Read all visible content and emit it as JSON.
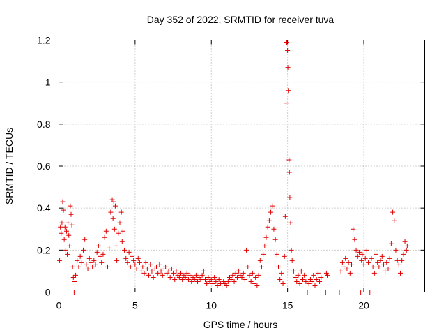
{
  "chart_data": {
    "type": "scatter",
    "title": "Day 352 of 2022, SRMTID for receiver tuva",
    "xlabel": "GPS time / hours",
    "ylabel": "SRMTID / TECUs",
    "xlim": [
      0,
      24
    ],
    "ylim": [
      0,
      1.2
    ],
    "xticks": [
      0,
      5,
      10,
      15,
      20
    ],
    "xtick_labels": [
      "0",
      "5",
      "10",
      "15",
      "20"
    ],
    "yticks": [
      0,
      0.2,
      0.4,
      0.6,
      0.8,
      1.0,
      1.2
    ],
    "ytick_labels": [
      "0",
      "0.2",
      "0.4",
      "0.6",
      "0.8",
      "1",
      "1.2"
    ],
    "grid": true,
    "marker": "+",
    "color": "#e00000",
    "series": [
      {
        "name": "SRMTID",
        "points": [
          [
            0.05,
            0.15
          ],
          [
            0.1,
            0.31
          ],
          [
            0.15,
            0.28
          ],
          [
            0.2,
            0.33
          ],
          [
            0.25,
            0.43
          ],
          [
            0.3,
            0.39
          ],
          [
            0.35,
            0.25
          ],
          [
            0.4,
            0.31
          ],
          [
            0.45,
            0.2
          ],
          [
            0.5,
            0.29
          ],
          [
            0.55,
            0.18
          ],
          [
            0.6,
            0.33
          ],
          [
            0.65,
            0.27
          ],
          [
            0.7,
            0.22
          ],
          [
            0.75,
            0.41
          ],
          [
            0.8,
            0.37
          ],
          [
            0.85,
            0.32
          ],
          [
            0.9,
            0.12
          ],
          [
            0.95,
            0.07
          ],
          [
            1.0,
            0.0
          ],
          [
            1.05,
            0.05
          ],
          [
            1.1,
            0.08
          ],
          [
            1.2,
            0.15
          ],
          [
            1.3,
            0.12
          ],
          [
            1.4,
            0.17
          ],
          [
            1.5,
            0.14
          ],
          [
            1.6,
            0.2
          ],
          [
            1.7,
            0.25
          ],
          [
            1.8,
            0.13
          ],
          [
            1.9,
            0.11
          ],
          [
            2.0,
            0.16
          ],
          [
            2.1,
            0.14
          ],
          [
            2.2,
            0.12
          ],
          [
            2.3,
            0.15
          ],
          [
            2.4,
            0.13
          ],
          [
            2.5,
            0.19
          ],
          [
            2.6,
            0.22
          ],
          [
            2.7,
            0.17
          ],
          [
            2.8,
            0.14
          ],
          [
            2.9,
            0.18
          ],
          [
            3.0,
            0.26
          ],
          [
            3.1,
            0.29
          ],
          [
            3.2,
            0.12
          ],
          [
            3.3,
            0.21
          ],
          [
            3.4,
            0.38
          ],
          [
            3.5,
            0.44
          ],
          [
            3.55,
            0.35
          ],
          [
            3.6,
            0.43
          ],
          [
            3.65,
            0.3
          ],
          [
            3.7,
            0.41
          ],
          [
            3.75,
            0.22
          ],
          [
            3.8,
            0.15
          ],
          [
            3.9,
            0.28
          ],
          [
            4.0,
            0.33
          ],
          [
            4.1,
            0.38
          ],
          [
            4.15,
            0.24
          ],
          [
            4.2,
            0.29
          ],
          [
            4.3,
            0.2
          ],
          [
            4.4,
            0.16
          ],
          [
            4.5,
            0.14
          ],
          [
            4.6,
            0.19
          ],
          [
            4.7,
            0.12
          ],
          [
            4.8,
            0.17
          ],
          [
            4.9,
            0.15
          ],
          [
            5.0,
            0.13
          ],
          [
            5.1,
            0.11
          ],
          [
            5.2,
            0.16
          ],
          [
            5.3,
            0.14
          ],
          [
            5.4,
            0.1
          ],
          [
            5.5,
            0.12
          ],
          [
            5.6,
            0.09
          ],
          [
            5.7,
            0.14
          ],
          [
            5.8,
            0.11
          ],
          [
            5.9,
            0.08
          ],
          [
            6.0,
            0.13
          ],
          [
            6.1,
            0.1
          ],
          [
            6.2,
            0.07
          ],
          [
            6.3,
            0.11
          ],
          [
            6.4,
            0.12
          ],
          [
            6.5,
            0.09
          ],
          [
            6.6,
            0.13
          ],
          [
            6.7,
            0.1
          ],
          [
            6.8,
            0.08
          ],
          [
            6.9,
            0.11
          ],
          [
            7.0,
            0.12
          ],
          [
            7.1,
            0.09
          ],
          [
            7.2,
            0.1
          ],
          [
            7.3,
            0.07
          ],
          [
            7.4,
            0.11
          ],
          [
            7.5,
            0.09
          ],
          [
            7.6,
            0.06
          ],
          [
            7.7,
            0.1
          ],
          [
            7.8,
            0.08
          ],
          [
            7.9,
            0.07
          ],
          [
            8.0,
            0.09
          ],
          [
            8.1,
            0.06
          ],
          [
            8.2,
            0.08
          ],
          [
            8.3,
            0.07
          ],
          [
            8.4,
            0.09
          ],
          [
            8.5,
            0.06
          ],
          [
            8.6,
            0.08
          ],
          [
            8.7,
            0.05
          ],
          [
            8.8,
            0.07
          ],
          [
            8.9,
            0.06
          ],
          [
            9.0,
            0.08
          ],
          [
            9.1,
            0.05
          ],
          [
            9.2,
            0.07
          ],
          [
            9.3,
            0.06
          ],
          [
            9.4,
            0.08
          ],
          [
            9.5,
            0.1
          ],
          [
            9.6,
            0.06
          ],
          [
            9.7,
            0.04
          ],
          [
            9.8,
            0.07
          ],
          [
            9.9,
            0.05
          ],
          [
            10.0,
            0.06
          ],
          [
            10.1,
            0.04
          ],
          [
            10.2,
            0.07
          ],
          [
            10.3,
            0.05
          ],
          [
            10.4,
            0.03
          ],
          [
            10.5,
            0.06
          ],
          [
            10.6,
            0.04
          ],
          [
            10.7,
            0.02
          ],
          [
            10.8,
            0.05
          ],
          [
            10.9,
            0.04
          ],
          [
            11.0,
            0.03
          ],
          [
            11.1,
            0.05
          ],
          [
            11.2,
            0.07
          ],
          [
            11.3,
            0.06
          ],
          [
            11.4,
            0.08
          ],
          [
            11.5,
            0.05
          ],
          [
            11.6,
            0.09
          ],
          [
            11.7,
            0.07
          ],
          [
            11.8,
            0.1
          ],
          [
            11.9,
            0.08
          ],
          [
            12.0,
            0.07
          ],
          [
            12.1,
            0.09
          ],
          [
            12.2,
            0.06
          ],
          [
            12.3,
            0.2
          ],
          [
            12.4,
            0.12
          ],
          [
            12.5,
            0.08
          ],
          [
            12.6,
            0.05
          ],
          [
            12.7,
            0.09
          ],
          [
            12.8,
            0.04
          ],
          [
            12.9,
            0.07
          ],
          [
            13.0,
            0.03
          ],
          [
            13.1,
            0.08
          ],
          [
            13.2,
            0.15
          ],
          [
            13.3,
            0.12
          ],
          [
            13.4,
            0.18
          ],
          [
            13.5,
            0.22
          ],
          [
            13.6,
            0.26
          ],
          [
            13.7,
            0.31
          ],
          [
            13.8,
            0.34
          ],
          [
            13.9,
            0.38
          ],
          [
            14.0,
            0.41
          ],
          [
            14.1,
            0.3
          ],
          [
            14.2,
            0.25
          ],
          [
            14.3,
            0.18
          ],
          [
            14.4,
            0.12
          ],
          [
            14.5,
            0.06
          ],
          [
            14.6,
            0.09
          ],
          [
            14.7,
            0.04
          ],
          [
            14.8,
            0.17
          ],
          [
            14.85,
            0.36
          ],
          [
            14.9,
            0.9
          ],
          [
            14.95,
            1.19
          ],
          [
            15.0,
            1.15
          ],
          [
            15.02,
            1.07
          ],
          [
            15.05,
            0.96
          ],
          [
            15.1,
            0.63
          ],
          [
            15.12,
            0.57
          ],
          [
            15.15,
            0.45
          ],
          [
            15.2,
            0.33
          ],
          [
            15.25,
            0.2
          ],
          [
            15.3,
            0.15
          ],
          [
            15.4,
            0.1
          ],
          [
            15.5,
            0.07
          ],
          [
            15.6,
            0.05
          ],
          [
            15.7,
            0.08
          ],
          [
            15.8,
            0.04
          ],
          [
            15.9,
            0.1
          ],
          [
            16.0,
            0.06
          ],
          [
            16.1,
            0.08
          ],
          [
            16.2,
            0.05
          ],
          [
            16.3,
            0.0
          ],
          [
            16.4,
            0.04
          ],
          [
            16.5,
            0.06
          ],
          [
            16.6,
            0.05
          ],
          [
            16.7,
            0.08
          ],
          [
            16.8,
            0.03
          ],
          [
            16.9,
            0.06
          ],
          [
            17.0,
            0.09
          ],
          [
            17.1,
            0.05
          ],
          [
            17.2,
            0.07
          ],
          [
            17.5,
            0.0
          ],
          [
            17.55,
            0.09
          ],
          [
            17.6,
            0.08
          ],
          [
            18.4,
            0.0
          ],
          [
            18.5,
            0.1
          ],
          [
            18.6,
            0.14
          ],
          [
            18.7,
            0.12
          ],
          [
            18.8,
            0.16
          ],
          [
            18.9,
            0.11
          ],
          [
            19.0,
            0.14
          ],
          [
            19.1,
            0.09
          ],
          [
            19.2,
            0.13
          ],
          [
            19.3,
            0.3
          ],
          [
            19.4,
            0.25
          ],
          [
            19.5,
            0.2
          ],
          [
            19.6,
            0.17
          ],
          [
            19.7,
            0.19
          ],
          [
            19.8,
            0.0
          ],
          [
            19.85,
            0.15
          ],
          [
            19.9,
            0.18
          ],
          [
            20.0,
            0.13
          ],
          [
            20.1,
            0.16
          ],
          [
            20.2,
            0.2
          ],
          [
            20.3,
            0.14
          ],
          [
            20.4,
            0.0
          ],
          [
            20.5,
            0.16
          ],
          [
            20.6,
            0.12
          ],
          [
            20.7,
            0.09
          ],
          [
            20.8,
            0.18
          ],
          [
            20.9,
            0.14
          ],
          [
            21.0,
            0.12
          ],
          [
            21.1,
            0.15
          ],
          [
            21.2,
            0.17
          ],
          [
            21.3,
            0.13
          ],
          [
            21.4,
            0.1
          ],
          [
            21.5,
            0.14
          ],
          [
            21.6,
            0.11
          ],
          [
            21.7,
            0.16
          ],
          [
            21.8,
            0.23
          ],
          [
            21.9,
            0.38
          ],
          [
            22.0,
            0.34
          ],
          [
            22.1,
            0.2
          ],
          [
            22.2,
            0.15
          ],
          [
            22.3,
            0.13
          ],
          [
            22.4,
            0.09
          ],
          [
            22.5,
            0.15
          ],
          [
            22.6,
            0.18
          ],
          [
            22.7,
            0.24
          ],
          [
            22.8,
            0.2
          ],
          [
            22.85,
            0.22
          ]
        ]
      }
    ]
  }
}
